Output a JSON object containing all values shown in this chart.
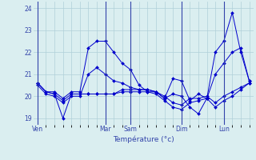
{
  "background_color": "#daeef0",
  "grid_color": "#b0d0d8",
  "line_color": "#0000cc",
  "xlabel": "Température (°c)",
  "ylim": [
    18.7,
    24.3
  ],
  "yticks": [
    19,
    20,
    21,
    22,
    23,
    24
  ],
  "ytick_labels": [
    "19",
    "20",
    "21",
    "22",
    "23",
    "24"
  ],
  "x_tick_labels": [
    "Ven",
    "Mar",
    "Sam",
    "Dim",
    "Lun"
  ],
  "x_tick_positions": [
    0,
    8,
    11,
    17,
    22
  ],
  "num_points": 26,
  "series": [
    [
      20.6,
      20.2,
      20.2,
      19.9,
      20.2,
      20.2,
      22.2,
      22.5,
      22.5,
      22.0,
      21.5,
      21.2,
      20.5,
      20.2,
      20.2,
      19.9,
      20.8,
      20.7,
      19.8,
      20.1,
      19.9,
      22.0,
      22.5,
      23.8,
      22.0,
      20.7
    ],
    [
      20.6,
      20.2,
      20.1,
      19.0,
      20.1,
      20.1,
      20.1,
      20.1,
      20.1,
      20.1,
      20.2,
      20.2,
      20.2,
      20.2,
      20.1,
      19.8,
      19.5,
      19.4,
      19.7,
      19.8,
      19.9,
      19.5,
      19.8,
      20.0,
      20.3,
      20.6
    ],
    [
      20.6,
      20.2,
      20.1,
      19.8,
      20.1,
      20.1,
      20.1,
      20.1,
      20.1,
      20.1,
      20.3,
      20.3,
      20.3,
      20.3,
      20.2,
      20.0,
      19.7,
      19.6,
      19.9,
      19.9,
      20.0,
      19.7,
      20.0,
      20.2,
      20.4,
      20.6
    ],
    [
      20.5,
      20.1,
      20.0,
      19.7,
      20.0,
      20.0,
      21.0,
      21.3,
      21.0,
      20.7,
      20.6,
      20.4,
      20.3,
      20.3,
      20.2,
      19.9,
      20.1,
      20.0,
      19.5,
      19.2,
      19.9,
      21.0,
      21.5,
      22.0,
      22.2,
      20.7
    ]
  ]
}
